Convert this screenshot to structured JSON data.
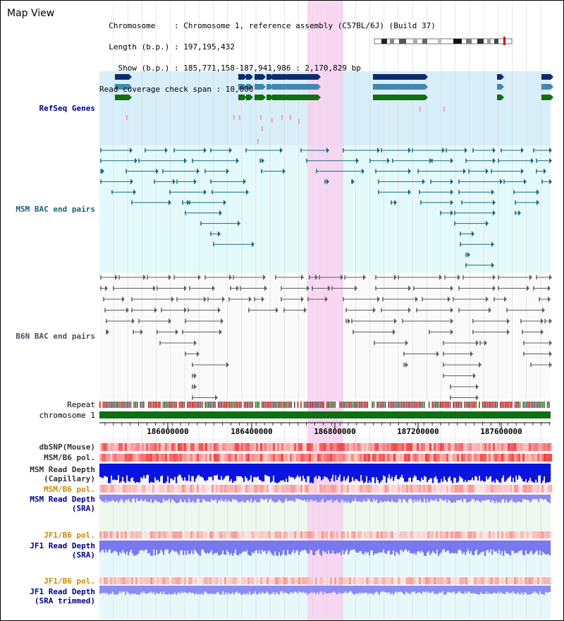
{
  "page": {
    "title": "Map View"
  },
  "header": {
    "lines": [
      "  Chromosome    : Chromosome 1, reference assembly (C57BL/6J) (Build 37)",
      "  Length (b.p.) : 197,195,432",
      "    Show (b.p.) : 185,771,158-187,941,986 : 2,170,829 bp",
      "Read coverage check span : 10,000"
    ]
  },
  "tracks": {
    "refseq": "RefSeq Genes",
    "msm_bac": "MSM BAC end pairs",
    "b6n_bac": "B6N BAC end pairs",
    "repeat": "Repeat",
    "chromosome": "chromosome 1",
    "dbsnp": "dbSNP(Mouse)",
    "msm_b6_pol_1": "MSM/B6 pol.",
    "msm_read_depth_cap_1": "MSM Read Depth",
    "msm_read_depth_cap_2": "(Capillary)",
    "msm_b6_pol_2": "MSM/B6 pol.",
    "msm_read_depth_sra_1": "MSM Read Depth",
    "msm_read_depth_sra_2": "(SRA)",
    "jf1_b6_pol_1": "JF1/B6 pol.",
    "jf1_read_depth_sra_1": "JF1 Read Depth",
    "jf1_read_depth_sra_2": "(SRA)",
    "jf1_b6_pol_2": "JF1/B6 pol.",
    "jf1_read_depth_trim_1": "JF1 Read Depth",
    "jf1_read_depth_trim_2": "(SRA trimmed)"
  },
  "axis": {
    "ticks": [
      "186000000",
      "186400000",
      "186800000",
      "187200000",
      "187600000"
    ]
  },
  "colors": {
    "label_blue": "#00008b",
    "label_orange": "#cc8800",
    "refseq_bg": "#d8eef8",
    "bac_bg": "#e4fafa",
    "highlight": "#f8d0ee",
    "gene_navy": "#0c2c6c",
    "gene_steel": "#4088b0",
    "gene_green": "#107010",
    "msm_line": "#1c6888",
    "b6n_line": "#606060",
    "chrom_green": "#0e7010",
    "depth_blue": "#0a14e0",
    "depth_lavender": "#7878f0"
  }
}
